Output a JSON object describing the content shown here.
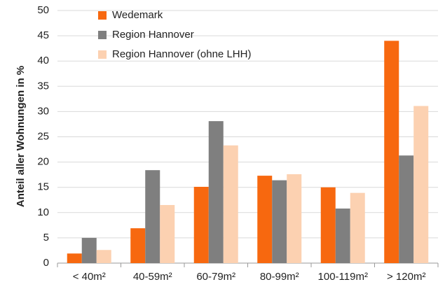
{
  "chart_data": {
    "type": "bar",
    "y_label": "Anteil aller Wohnungen in %",
    "categories": [
      "< 40m²",
      "40-59m²",
      "60-79m²",
      "80-99m²",
      "100-119m²",
      "> 120m²"
    ],
    "series": [
      {
        "name": "Wedemark",
        "color": "#f7680f",
        "values": [
          1.9,
          6.9,
          15.1,
          17.3,
          15.0,
          44.0
        ]
      },
      {
        "name": "Region Hannover",
        "color": "#7f7f7f",
        "values": [
          5.0,
          18.4,
          28.1,
          16.4,
          10.8,
          21.3
        ]
      },
      {
        "name": "Region Hannover (ohne LHH)",
        "color": "#fcd1b1",
        "values": [
          2.6,
          11.5,
          23.3,
          17.6,
          13.9,
          31.1
        ]
      }
    ],
    "ylim": [
      0,
      50
    ],
    "yticks": [
      0,
      5,
      10,
      15,
      20,
      25,
      30,
      35,
      40,
      45,
      50
    ],
    "grid": true,
    "legend": "top-left"
  }
}
